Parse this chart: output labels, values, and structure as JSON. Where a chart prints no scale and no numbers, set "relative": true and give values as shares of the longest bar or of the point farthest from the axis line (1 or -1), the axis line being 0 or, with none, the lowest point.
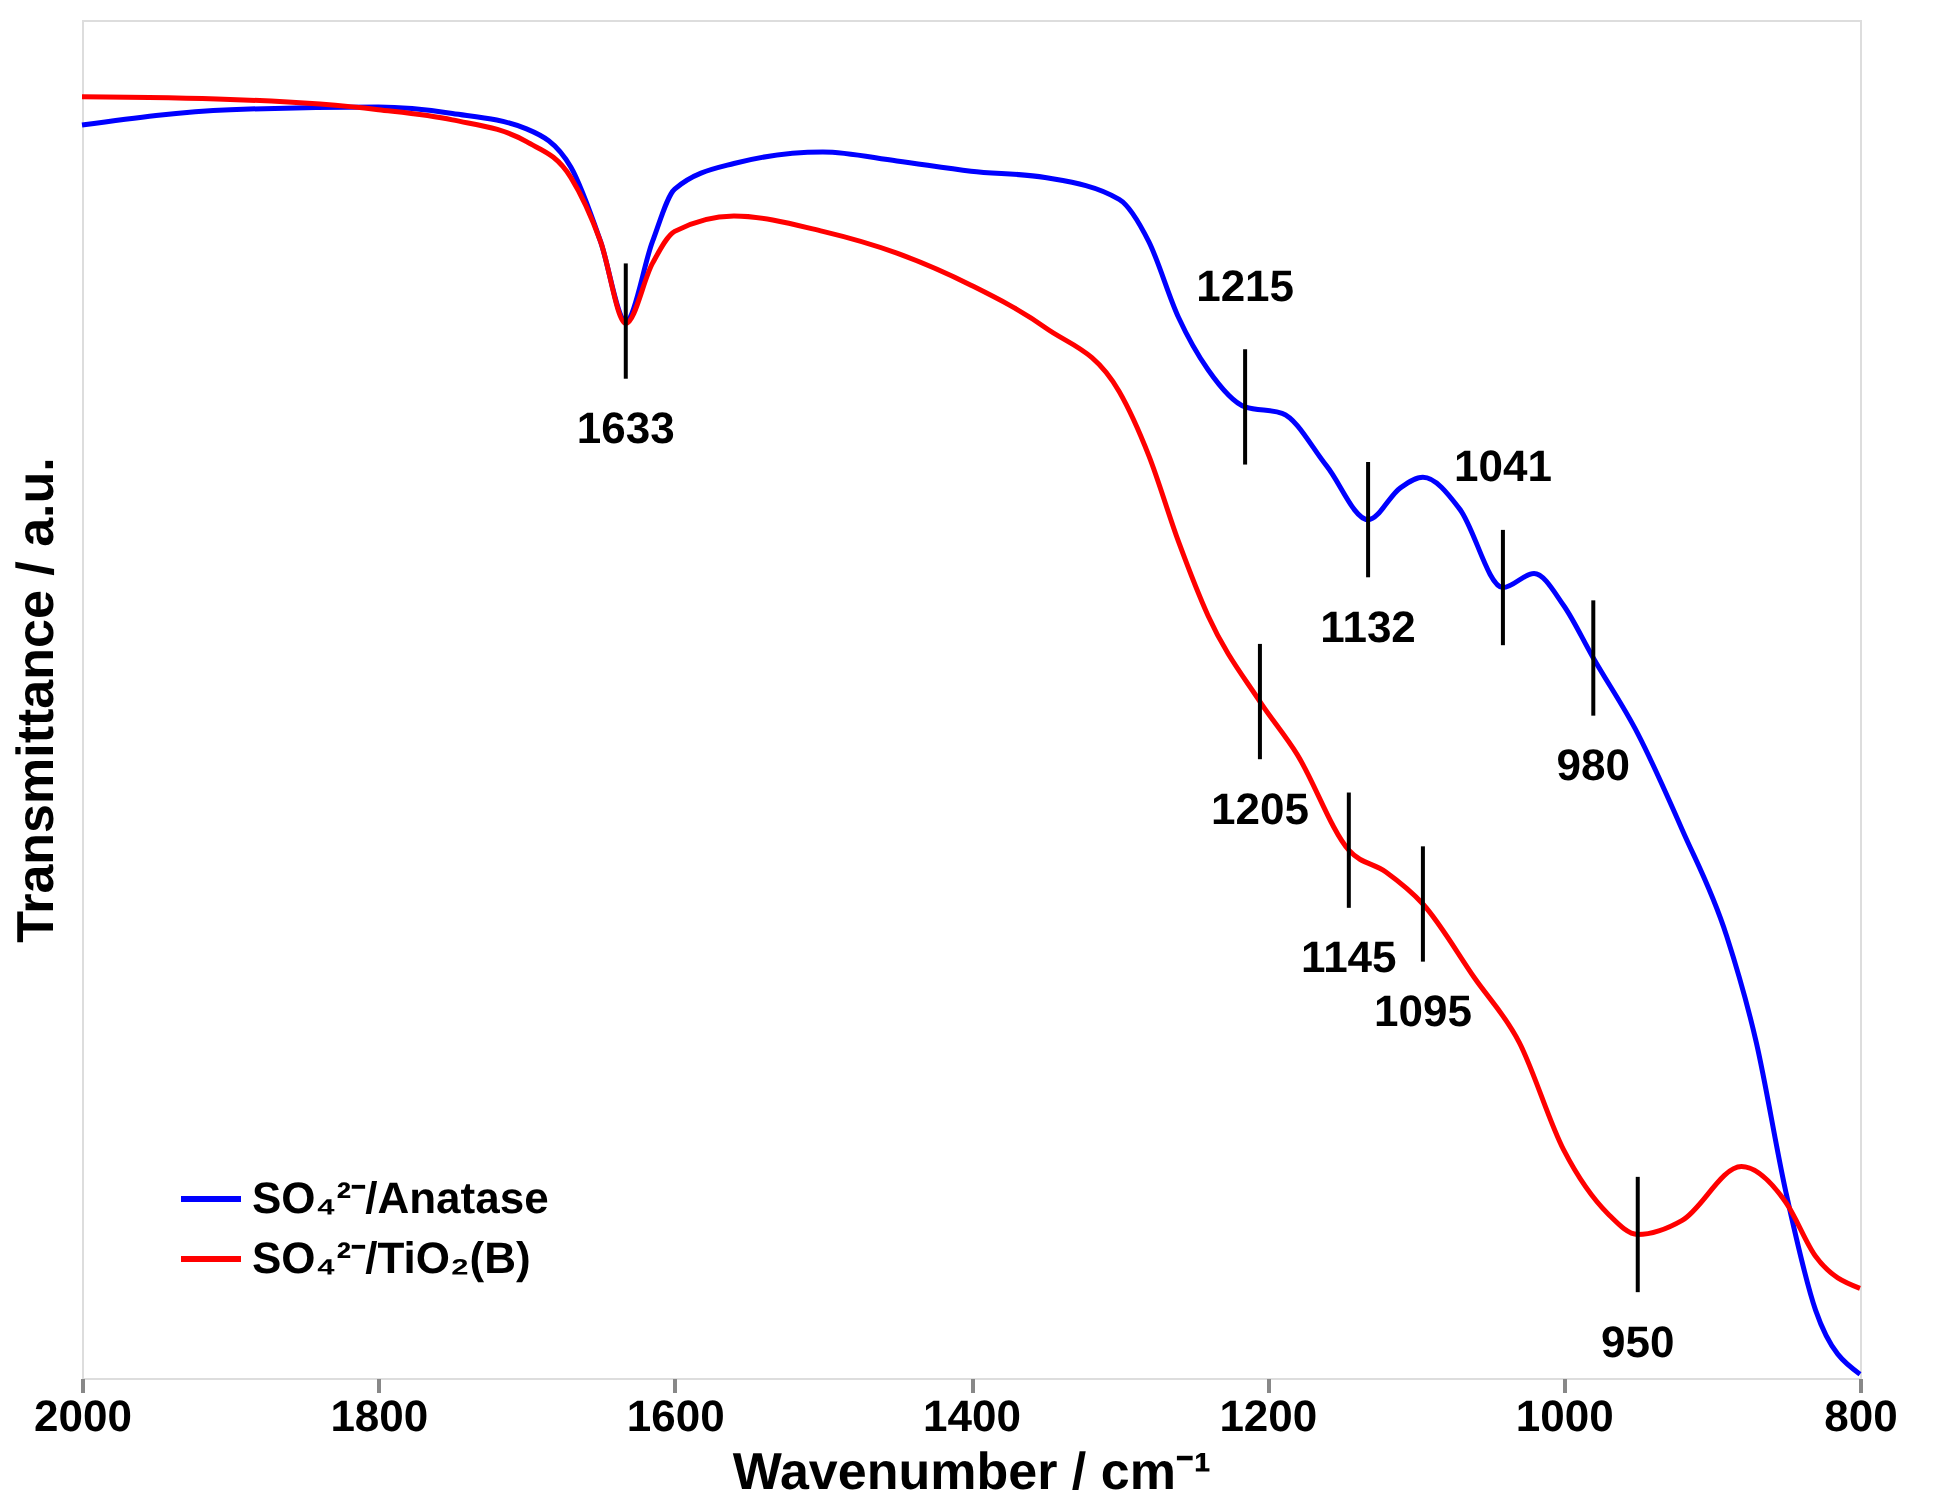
{
  "chart_data": {
    "type": "line",
    "relative": true,
    "xlabel": "Wavenumber / cm⁻¹",
    "ylabel": "Transmittance / a.u.",
    "xlim": [
      2000,
      800
    ],
    "xticks": [
      2000,
      1800,
      1600,
      1400,
      1200,
      1000,
      800
    ],
    "x": [
      2000,
      1900,
      1800,
      1750,
      1700,
      1670,
      1650,
      1633,
      1615,
      1600,
      1560,
      1500,
      1450,
      1400,
      1350,
      1300,
      1280,
      1260,
      1240,
      1215,
      1190,
      1160,
      1132,
      1110,
      1095,
      1070,
      1041,
      1020,
      1000,
      980,
      950,
      920,
      890,
      870,
      850,
      830,
      800
    ],
    "series": [
      {
        "name": "SO₄²⁻/Anatase",
        "color": "#0000ff",
        "values": [
          0.978,
          0.99,
          0.992,
          0.987,
          0.975,
          0.945,
          0.887,
          0.825,
          0.887,
          0.928,
          0.948,
          0.957,
          0.95,
          0.942,
          0.937,
          0.92,
          0.887,
          0.828,
          0.787,
          0.758,
          0.753,
          0.712,
          0.67,
          0.695,
          0.703,
          0.678,
          0.617,
          0.628,
          0.603,
          0.562,
          0.503,
          0.428,
          0.345,
          0.262,
          0.145,
          0.053,
          0.003
        ]
      },
      {
        "name": "SO₄²⁻/TiO₂(B)",
        "color": "#ff0000",
        "x": [
          2000,
          1900,
          1800,
          1750,
          1700,
          1670,
          1650,
          1633,
          1615,
          1600,
          1560,
          1500,
          1450,
          1400,
          1350,
          1300,
          1280,
          1260,
          1240,
          1205,
          1180,
          1145,
          1120,
          1095,
          1060,
          1030,
          1000,
          970,
          950,
          920,
          880,
          850,
          830,
          800
        ],
        "values": [
          1.0,
          0.998,
          0.99,
          0.982,
          0.965,
          0.937,
          0.887,
          0.823,
          0.87,
          0.895,
          0.907,
          0.895,
          0.878,
          0.853,
          0.82,
          0.77,
          0.72,
          0.653,
          0.595,
          0.528,
          0.487,
          0.412,
          0.395,
          0.37,
          0.312,
          0.262,
          0.178,
          0.128,
          0.112,
          0.123,
          0.165,
          0.137,
          0.095,
          0.07
        ]
      }
    ],
    "annotations": [
      {
        "text": "1633",
        "x": 1633,
        "y": 0.825
      },
      {
        "text": "1215",
        "x": 1215,
        "y": 0.758
      },
      {
        "text": "1132",
        "x": 1132,
        "y": 0.67
      },
      {
        "text": "1041",
        "x": 1041,
        "y": 0.617
      },
      {
        "text": "980",
        "x": 980,
        "y": 0.562
      },
      {
        "text": "1205",
        "x": 1205,
        "y": 0.528
      },
      {
        "text": "1145",
        "x": 1145,
        "y": 0.412
      },
      {
        "text": "1095",
        "x": 1095,
        "y": 0.37
      },
      {
        "text": "950",
        "x": 950,
        "y": 0.112
      }
    ],
    "legend": "bottom left",
    "grid": false,
    "marker": "none",
    "line_style": "solid"
  }
}
